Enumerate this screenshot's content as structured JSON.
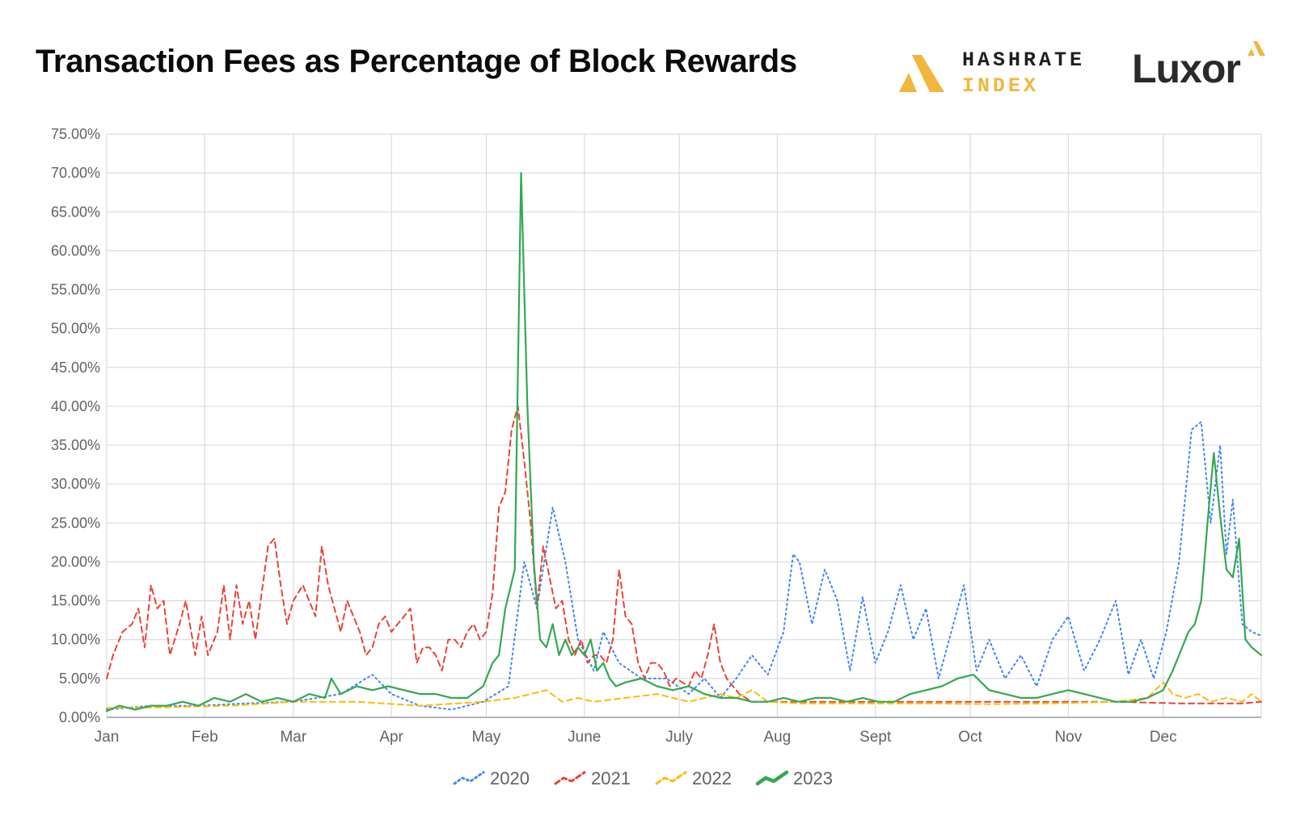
{
  "title": "Transaction Fees as Percentage of Block Rewards",
  "logos": {
    "hashrate_line1": "HASHRATE",
    "hashrate_line2": "INDEX",
    "luxor": "Luxor"
  },
  "colors": {
    "2020": "#4285f4",
    "2021": "#ea4335",
    "2022": "#fbbc04",
    "2023": "#34a853",
    "grid": "#dadce0",
    "hashrate_gold": "#f0b63e"
  },
  "chart_data": {
    "type": "line",
    "title": "Transaction Fees as Percentage of Block Rewards",
    "xlabel": "",
    "ylabel": "",
    "x_unit": "day of year",
    "xlim": [
      1,
      366
    ],
    "ylim": [
      0,
      75
    ],
    "y_ticks": [
      0,
      5,
      10,
      15,
      20,
      25,
      30,
      35,
      40,
      45,
      50,
      55,
      60,
      65,
      70,
      75
    ],
    "y_tick_labels": [
      "0.00%",
      "5.00%",
      "10.00%",
      "15.00%",
      "20.00%",
      "25.00%",
      "30.00%",
      "35.00%",
      "40.00%",
      "45.00%",
      "50.00%",
      "55.00%",
      "60.00%",
      "65.00%",
      "70.00%",
      "75.00%"
    ],
    "month_ticks": [
      1,
      32,
      60,
      91,
      121,
      152,
      182,
      213,
      244,
      274,
      305,
      335
    ],
    "month_labels": [
      "Jan",
      "Feb",
      "Mar",
      "Apr",
      "May",
      "June",
      "July",
      "Aug",
      "Sept",
      "Oct",
      "Nov",
      "Dec"
    ],
    "grid": true,
    "legend_position": "bottom",
    "series": [
      {
        "name": "2020",
        "style": "dotted",
        "points": [
          [
            1,
            1.0
          ],
          [
            15,
            1.5
          ],
          [
            30,
            1.5
          ],
          [
            45,
            1.8
          ],
          [
            60,
            2.0
          ],
          [
            75,
            3.0
          ],
          [
            85,
            5.5
          ],
          [
            91,
            3.0
          ],
          [
            100,
            1.5
          ],
          [
            110,
            1.0
          ],
          [
            120,
            2.0
          ],
          [
            128,
            4.0
          ],
          [
            133,
            20.0
          ],
          [
            137,
            14.0
          ],
          [
            142,
            27.0
          ],
          [
            146,
            20.0
          ],
          [
            150,
            10.0
          ],
          [
            155,
            6.0
          ],
          [
            158,
            11.0
          ],
          [
            163,
            7.0
          ],
          [
            170,
            5.0
          ],
          [
            178,
            5.0
          ],
          [
            185,
            3.0
          ],
          [
            190,
            5.0
          ],
          [
            195,
            2.5
          ],
          [
            200,
            5.0
          ],
          [
            205,
            8.0
          ],
          [
            210,
            5.5
          ],
          [
            215,
            11.0
          ],
          [
            218,
            21.0
          ],
          [
            220,
            20.0
          ],
          [
            224,
            12.0
          ],
          [
            228,
            19.0
          ],
          [
            232,
            15.0
          ],
          [
            236,
            6.0
          ],
          [
            240,
            15.5
          ],
          [
            244,
            7.0
          ],
          [
            248,
            11.0
          ],
          [
            252,
            17.0
          ],
          [
            256,
            10.0
          ],
          [
            260,
            14.0
          ],
          [
            264,
            5.0
          ],
          [
            268,
            11.0
          ],
          [
            272,
            17.0
          ],
          [
            276,
            6.0
          ],
          [
            280,
            10.0
          ],
          [
            285,
            5.0
          ],
          [
            290,
            8.0
          ],
          [
            295,
            4.0
          ],
          [
            300,
            10.0
          ],
          [
            305,
            13.0
          ],
          [
            310,
            6.0
          ],
          [
            315,
            10.0
          ],
          [
            320,
            15.0
          ],
          [
            324,
            5.5
          ],
          [
            328,
            10.0
          ],
          [
            332,
            5.0
          ],
          [
            336,
            11.0
          ],
          [
            340,
            20.0
          ],
          [
            344,
            37.0
          ],
          [
            347,
            38.0
          ],
          [
            350,
            25.0
          ],
          [
            353,
            35.0
          ],
          [
            355,
            21.0
          ],
          [
            357,
            28.0
          ],
          [
            360,
            12.0
          ],
          [
            363,
            11.0
          ],
          [
            366,
            10.5
          ]
        ]
      },
      {
        "name": "2021",
        "style": "dashed",
        "points": [
          [
            1,
            5.0
          ],
          [
            3,
            8.0
          ],
          [
            6,
            11.0
          ],
          [
            9,
            12.0
          ],
          [
            11,
            14.0
          ],
          [
            13,
            9.0
          ],
          [
            15,
            17.0
          ],
          [
            17,
            14.0
          ],
          [
            19,
            15.0
          ],
          [
            21,
            8.0
          ],
          [
            24,
            12.0
          ],
          [
            26,
            15.0
          ],
          [
            29,
            8.0
          ],
          [
            31,
            13.0
          ],
          [
            33,
            8.0
          ],
          [
            36,
            11.0
          ],
          [
            38,
            17.0
          ],
          [
            40,
            10.0
          ],
          [
            42,
            17.0
          ],
          [
            44,
            12.0
          ],
          [
            46,
            15.0
          ],
          [
            48,
            10.0
          ],
          [
            50,
            16.0
          ],
          [
            52,
            22.0
          ],
          [
            54,
            23.0
          ],
          [
            56,
            17.0
          ],
          [
            58,
            12.0
          ],
          [
            60,
            15.0
          ],
          [
            63,
            17.0
          ],
          [
            65,
            15.0
          ],
          [
            67,
            13.0
          ],
          [
            69,
            22.0
          ],
          [
            71,
            17.0
          ],
          [
            73,
            14.0
          ],
          [
            75,
            11.0
          ],
          [
            77,
            15.0
          ],
          [
            79,
            13.0
          ],
          [
            81,
            11.0
          ],
          [
            83,
            8.0
          ],
          [
            85,
            9.0
          ],
          [
            87,
            12.0
          ],
          [
            89,
            13.0
          ],
          [
            91,
            11.0
          ],
          [
            93,
            12.0
          ],
          [
            95,
            13.0
          ],
          [
            97,
            14.0
          ],
          [
            99,
            7.0
          ],
          [
            101,
            9.0
          ],
          [
            103,
            9.0
          ],
          [
            105,
            8.0
          ],
          [
            107,
            6.0
          ],
          [
            109,
            10.0
          ],
          [
            111,
            10.0
          ],
          [
            113,
            9.0
          ],
          [
            115,
            11.0
          ],
          [
            117,
            12.0
          ],
          [
            119,
            10.0
          ],
          [
            121,
            11.0
          ],
          [
            123,
            16.0
          ],
          [
            125,
            27.0
          ],
          [
            127,
            29.0
          ],
          [
            129,
            37.0
          ],
          [
            131,
            40.0
          ],
          [
            133,
            33.0
          ],
          [
            135,
            25.0
          ],
          [
            137,
            14.0
          ],
          [
            139,
            22.0
          ],
          [
            141,
            18.0
          ],
          [
            143,
            14.0
          ],
          [
            145,
            15.0
          ],
          [
            147,
            10.0
          ],
          [
            149,
            8.0
          ],
          [
            151,
            10.0
          ],
          [
            153,
            7.0
          ],
          [
            155,
            8.0
          ],
          [
            157,
            8.0
          ],
          [
            159,
            7.0
          ],
          [
            161,
            10.0
          ],
          [
            163,
            19.0
          ],
          [
            165,
            13.0
          ],
          [
            167,
            12.0
          ],
          [
            169,
            7.0
          ],
          [
            171,
            5.0
          ],
          [
            173,
            7.0
          ],
          [
            175,
            7.0
          ],
          [
            177,
            6.0
          ],
          [
            179,
            4.0
          ],
          [
            181,
            5.0
          ],
          [
            183,
            4.5
          ],
          [
            185,
            4.0
          ],
          [
            187,
            6.0
          ],
          [
            189,
            5.0
          ],
          [
            191,
            8.0
          ],
          [
            193,
            12.0
          ],
          [
            195,
            7.0
          ],
          [
            197,
            5.0
          ],
          [
            199,
            4.0
          ],
          [
            201,
            3.0
          ],
          [
            205,
            2.0
          ],
          [
            220,
            2.0
          ],
          [
            240,
            2.0
          ],
          [
            260,
            2.0
          ],
          [
            280,
            2.0
          ],
          [
            300,
            2.0
          ],
          [
            320,
            2.0
          ],
          [
            340,
            1.8
          ],
          [
            360,
            1.8
          ],
          [
            366,
            2.0
          ]
        ]
      },
      {
        "name": "2022",
        "style": "dashed",
        "points": [
          [
            1,
            1.2
          ],
          [
            20,
            1.3
          ],
          [
            40,
            1.5
          ],
          [
            60,
            2.0
          ],
          [
            80,
            2.0
          ],
          [
            100,
            1.5
          ],
          [
            120,
            2.0
          ],
          [
            130,
            2.5
          ],
          [
            140,
            3.5
          ],
          [
            145,
            2.0
          ],
          [
            150,
            2.5
          ],
          [
            155,
            2.0
          ],
          [
            165,
            2.5
          ],
          [
            175,
            3.0
          ],
          [
            185,
            2.0
          ],
          [
            195,
            3.0
          ],
          [
            200,
            2.5
          ],
          [
            205,
            3.5
          ],
          [
            210,
            2.0
          ],
          [
            220,
            1.8
          ],
          [
            240,
            1.8
          ],
          [
            260,
            1.8
          ],
          [
            280,
            1.7
          ],
          [
            300,
            1.8
          ],
          [
            320,
            2.0
          ],
          [
            330,
            2.5
          ],
          [
            335,
            4.5
          ],
          [
            338,
            3.0
          ],
          [
            342,
            2.5
          ],
          [
            346,
            3.0
          ],
          [
            350,
            2.0
          ],
          [
            355,
            2.5
          ],
          [
            360,
            2.0
          ],
          [
            363,
            3.0
          ],
          [
            366,
            2.0
          ]
        ]
      },
      {
        "name": "2023",
        "style": "solid",
        "points": [
          [
            1,
            0.8
          ],
          [
            5,
            1.5
          ],
          [
            10,
            1.0
          ],
          [
            15,
            1.5
          ],
          [
            20,
            1.5
          ],
          [
            25,
            2.0
          ],
          [
            30,
            1.5
          ],
          [
            35,
            2.5
          ],
          [
            40,
            2.0
          ],
          [
            45,
            3.0
          ],
          [
            50,
            2.0
          ],
          [
            55,
            2.5
          ],
          [
            60,
            2.0
          ],
          [
            65,
            3.0
          ],
          [
            70,
            2.5
          ],
          [
            72,
            5.0
          ],
          [
            75,
            3.0
          ],
          [
            80,
            4.0
          ],
          [
            85,
            3.5
          ],
          [
            90,
            4.0
          ],
          [
            95,
            3.5
          ],
          [
            100,
            3.0
          ],
          [
            105,
            3.0
          ],
          [
            110,
            2.5
          ],
          [
            115,
            2.5
          ],
          [
            120,
            4.0
          ],
          [
            123,
            7.0
          ],
          [
            125,
            8.0
          ],
          [
            127,
            14.0
          ],
          [
            130,
            19.0
          ],
          [
            132,
            70.0
          ],
          [
            134,
            40.0
          ],
          [
            136,
            20.0
          ],
          [
            138,
            10.0
          ],
          [
            140,
            9.0
          ],
          [
            142,
            12.0
          ],
          [
            144,
            8.0
          ],
          [
            146,
            10.0
          ],
          [
            148,
            8.0
          ],
          [
            150,
            9.0
          ],
          [
            152,
            8.0
          ],
          [
            154,
            10.0
          ],
          [
            156,
            6.0
          ],
          [
            158,
            7.0
          ],
          [
            160,
            5.0
          ],
          [
            162,
            4.0
          ],
          [
            165,
            4.5
          ],
          [
            170,
            5.0
          ],
          [
            175,
            4.0
          ],
          [
            180,
            3.5
          ],
          [
            185,
            4.0
          ],
          [
            190,
            3.0
          ],
          [
            195,
            2.5
          ],
          [
            200,
            2.5
          ],
          [
            205,
            2.0
          ],
          [
            210,
            2.0
          ],
          [
            215,
            2.5
          ],
          [
            220,
            2.0
          ],
          [
            225,
            2.5
          ],
          [
            230,
            2.5
          ],
          [
            235,
            2.0
          ],
          [
            240,
            2.5
          ],
          [
            245,
            2.0
          ],
          [
            250,
            2.0
          ],
          [
            255,
            3.0
          ],
          [
            260,
            3.5
          ],
          [
            265,
            4.0
          ],
          [
            270,
            5.0
          ],
          [
            275,
            5.5
          ],
          [
            280,
            3.5
          ],
          [
            285,
            3.0
          ],
          [
            290,
            2.5
          ],
          [
            295,
            2.5
          ],
          [
            300,
            3.0
          ],
          [
            305,
            3.5
          ],
          [
            310,
            3.0
          ],
          [
            315,
            2.5
          ],
          [
            320,
            2.0
          ],
          [
            325,
            2.0
          ],
          [
            330,
            2.5
          ],
          [
            335,
            3.5
          ],
          [
            338,
            6.0
          ],
          [
            340,
            8.0
          ],
          [
            343,
            11.0
          ],
          [
            345,
            12.0
          ],
          [
            347,
            15.0
          ],
          [
            349,
            25.0
          ],
          [
            351,
            34.0
          ],
          [
            353,
            26.0
          ],
          [
            355,
            19.0
          ],
          [
            357,
            18.0
          ],
          [
            359,
            23.0
          ],
          [
            361,
            10.0
          ],
          [
            363,
            9.0
          ],
          [
            366,
            8.0
          ]
        ]
      }
    ]
  }
}
